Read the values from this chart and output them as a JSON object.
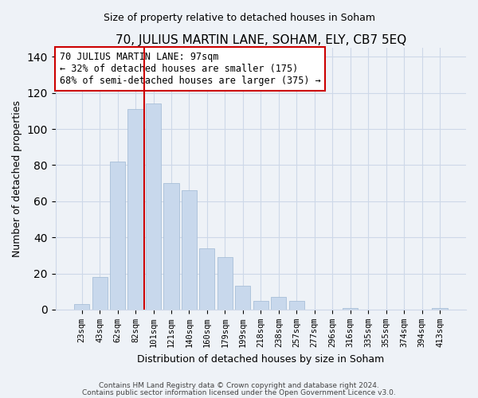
{
  "title": "70, JULIUS MARTIN LANE, SOHAM, ELY, CB7 5EQ",
  "subtitle": "Size of property relative to detached houses in Soham",
  "xlabel": "Distribution of detached houses by size in Soham",
  "ylabel": "Number of detached properties",
  "bar_labels": [
    "23sqm",
    "43sqm",
    "62sqm",
    "82sqm",
    "101sqm",
    "121sqm",
    "140sqm",
    "160sqm",
    "179sqm",
    "199sqm",
    "218sqm",
    "238sqm",
    "257sqm",
    "277sqm",
    "296sqm",
    "316sqm",
    "335sqm",
    "355sqm",
    "374sqm",
    "394sqm",
    "413sqm"
  ],
  "bar_values": [
    3,
    18,
    82,
    111,
    114,
    70,
    66,
    34,
    29,
    13,
    5,
    7,
    5,
    0,
    0,
    1,
    0,
    0,
    0,
    0,
    1
  ],
  "bar_color": "#c8d8ec",
  "highlight_edge_color": "#cc0000",
  "normal_edge_color": "#a8bfd8",
  "ylim": [
    0,
    145
  ],
  "yticks": [
    0,
    20,
    40,
    60,
    80,
    100,
    120,
    140
  ],
  "red_line_x": 3.5,
  "annotation_line1": "70 JULIUS MARTIN LANE: 97sqm",
  "annotation_line2": "← 32% of detached houses are smaller (175)",
  "annotation_line3": "68% of semi-detached houses are larger (375) →",
  "footer_line1": "Contains HM Land Registry data © Crown copyright and database right 2024.",
  "footer_line2": "Contains public sector information licensed under the Open Government Licence v3.0.",
  "bg_color": "#eef2f7",
  "grid_color": "#cdd8e8",
  "box_edge_color": "#cc0000",
  "title_fontsize": 11,
  "subtitle_fontsize": 9,
  "axis_label_fontsize": 9,
  "tick_fontsize": 7.5,
  "annotation_fontsize": 8.5,
  "footer_fontsize": 6.5
}
